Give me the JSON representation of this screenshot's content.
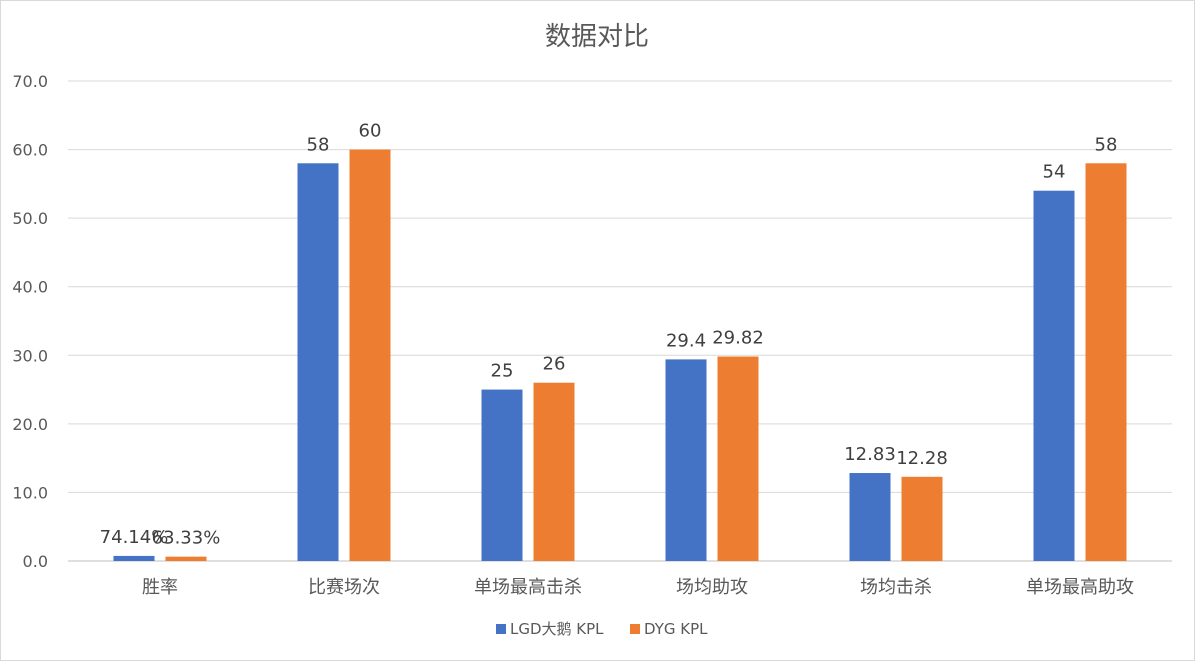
{
  "chart_data": {
    "type": "bar",
    "title": "数据对比",
    "xlabel": "",
    "ylabel": "",
    "ylim": [
      0,
      70
    ],
    "yticks": [
      "0.0",
      "10.0",
      "20.0",
      "30.0",
      "40.0",
      "50.0",
      "60.0",
      "70.0"
    ],
    "grid": true,
    "legend_position": "bottom",
    "categories": [
      "胜率",
      "比赛场次",
      "单场最高击杀",
      "场均助攻",
      "场均击杀",
      "单场最高助攻"
    ],
    "series": [
      {
        "name": "LGD大鹅 KPL",
        "color": "#4472C4",
        "values": [
          0.7414,
          58,
          25,
          29.4,
          12.83,
          54
        ],
        "labels": [
          "74.14%",
          "58",
          "25",
          "29.4",
          "12.83",
          "54"
        ]
      },
      {
        "name": "DYG KPL",
        "color": "#ED7D31",
        "values": [
          0.6333,
          60,
          26,
          29.82,
          12.28,
          58
        ],
        "labels": [
          "63.33%",
          "60",
          "26",
          "29.82",
          "12.28",
          "58"
        ]
      }
    ]
  }
}
